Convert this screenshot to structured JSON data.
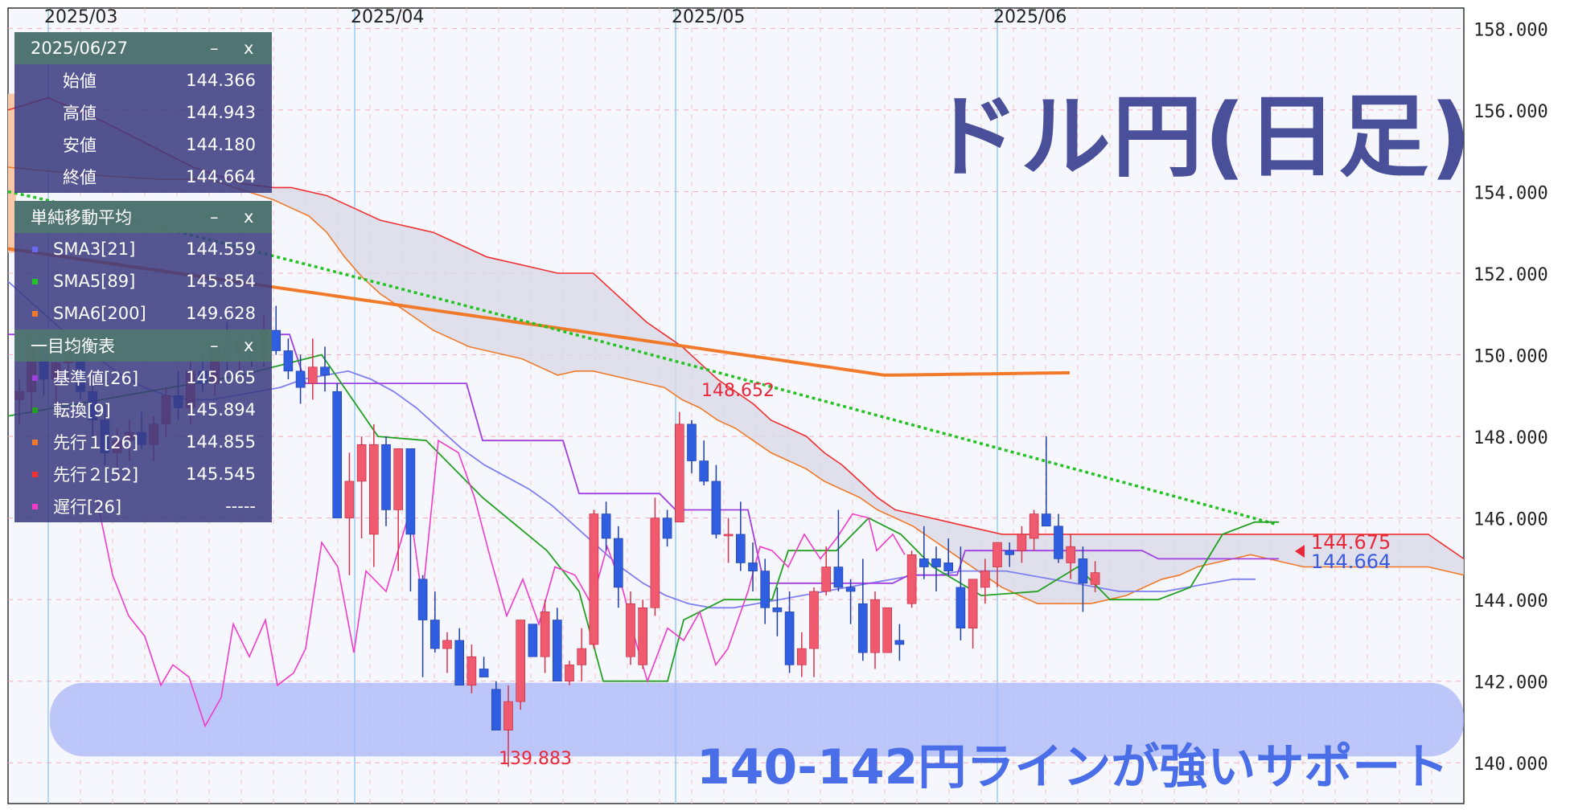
{
  "chart_data": {
    "type": "candlestick",
    "title": "ドル円(日足)",
    "annotation": "140-142円ラインが強いサポート",
    "support_band": [
      140.0,
      142.0
    ],
    "x_labels": [
      "2025/03",
      "2025/04",
      "2025/05",
      "2025/06"
    ],
    "y_ticks": [
      "158.000",
      "156.000",
      "154.000",
      "152.000",
      "150.000",
      "148.000",
      "146.000",
      "144.000",
      "142.000",
      "140.000"
    ],
    "ylim": [
      139.0,
      158.5
    ],
    "high_label": "148.652",
    "low_label": "139.883",
    "price_tag_red": "144.675",
    "price_tag_blue": "144.664",
    "colors": {
      "up": "#f05a6e",
      "down": "#2f5fe0",
      "title": "#4a4f9a",
      "annotation": "#4a6ee8",
      "support": "#aab6f5",
      "cloud": "#d9dbe6"
    }
  },
  "ohlc_panel": {
    "date": "2025/06/27",
    "minimize": "–",
    "close": "x",
    "rows": [
      {
        "label": "始値",
        "value": "144.366"
      },
      {
        "label": "高値",
        "value": "144.943"
      },
      {
        "label": "安値",
        "value": "144.180"
      },
      {
        "label": "終値",
        "value": "144.664"
      }
    ]
  },
  "sma_panel": {
    "title": "単純移動平均",
    "minimize": "–",
    "close": "x",
    "rows": [
      {
        "label": "SMA3[21]",
        "value": "144.559",
        "color": "#6a6af0"
      },
      {
        "label": "SMA5[89]",
        "value": "145.854",
        "color": "#22c322"
      },
      {
        "label": "SMA6[200]",
        "value": "149.628",
        "color": "#f07a2a"
      }
    ]
  },
  "ichimoku_panel": {
    "title": "一目均衡表",
    "minimize": "–",
    "close": "x",
    "rows": [
      {
        "label": "基準値[26]",
        "value": "145.065",
        "color": "#a040e0"
      },
      {
        "label": "転換[9]",
        "value": "145.894",
        "color": "#22a022"
      },
      {
        "label": "先行１[26]",
        "value": "144.855",
        "color": "#f07a2a"
      },
      {
        "label": "先行２[52]",
        "value": "145.545",
        "color": "#f03030"
      },
      {
        "label": "遅行[26]",
        "value": "-----",
        "color": "#f03cc8"
      }
    ]
  }
}
